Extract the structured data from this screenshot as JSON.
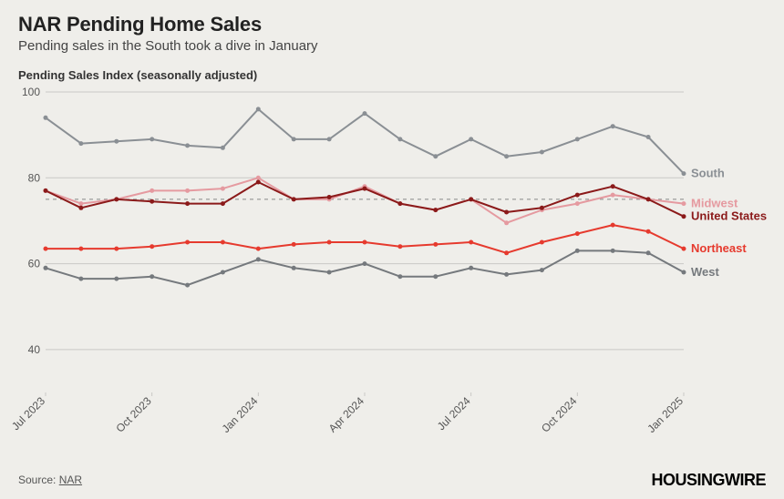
{
  "title": "NAR Pending Home Sales",
  "subtitle": "Pending sales in the South took a dive in January",
  "ylabel": "Pending Sales Index (seasonally adjusted)",
  "source_prefix": "Source: ",
  "source_name": "NAR",
  "brand": "HOUSINGWIRE",
  "chart": {
    "type": "line",
    "background_color": "#efeeea",
    "grid_color": "#c9c8c5",
    "baseline_color": "#888888",
    "baseline_dash": "4,4",
    "baseline_value": 75,
    "ylim": [
      30,
      100
    ],
    "yticks": [
      40,
      60,
      80,
      100
    ],
    "x_count": 19,
    "xticks": [
      {
        "idx": 0,
        "label": "Jul 2023"
      },
      {
        "idx": 3,
        "label": "Oct 2023"
      },
      {
        "idx": 6,
        "label": "Jan 2024"
      },
      {
        "idx": 9,
        "label": "Apr 2024"
      },
      {
        "idx": 12,
        "label": "Jul 2024"
      },
      {
        "idx": 15,
        "label": "Oct 2024"
      },
      {
        "idx": 18,
        "label": "Jan 2025"
      }
    ],
    "marker_radius": 2.5,
    "line_width": 2,
    "label_fontsize": 13,
    "tick_fontsize": 12,
    "series": [
      {
        "name": "South",
        "color": "#8a8f94",
        "label": "South",
        "values": [
          94,
          88,
          88.5,
          89,
          87.5,
          87,
          96,
          89,
          89,
          95,
          89,
          85,
          89,
          85,
          86,
          89,
          92,
          89.5,
          81
        ]
      },
      {
        "name": "Midwest",
        "color": "#e59aa0",
        "label": "Midwest",
        "values": [
          77,
          74,
          75,
          77,
          77,
          77.5,
          80,
          75,
          75,
          78,
          74,
          72.5,
          75,
          69.5,
          72.5,
          74,
          76,
          75,
          74
        ]
      },
      {
        "name": "United States",
        "color": "#8b1a1a",
        "label": "United States",
        "values": [
          77,
          73,
          75,
          74.5,
          74,
          74,
          79,
          75,
          75.5,
          77.5,
          74,
          72.5,
          75,
          72,
          73,
          76,
          78,
          75,
          71
        ]
      },
      {
        "name": "Northeast",
        "color": "#e63a2e",
        "label": "Northeast",
        "values": [
          63.5,
          63.5,
          63.5,
          64,
          65,
          65,
          63.5,
          64.5,
          65,
          65,
          64,
          64.5,
          65,
          62.5,
          65,
          67,
          69,
          67.5,
          63.5
        ]
      },
      {
        "name": "West",
        "color": "#75797d",
        "label": "West",
        "values": [
          59,
          56.5,
          56.5,
          57,
          55,
          58,
          61,
          59,
          58,
          60,
          57,
          57,
          59,
          57.5,
          58.5,
          63,
          63,
          62.5,
          58
        ]
      }
    ]
  }
}
